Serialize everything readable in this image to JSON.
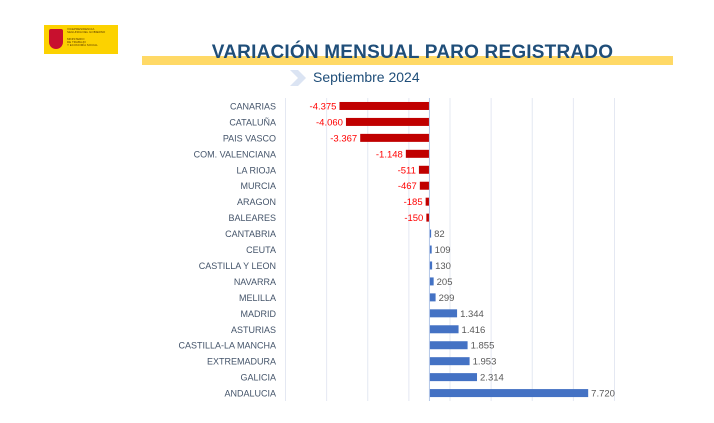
{
  "header": {
    "logo_lines": [
      "VICEPRESIDENCIA",
      "SEGUNDA DEL GOBIERNO",
      "MINISTERIO",
      "DE TRABAJO",
      "Y ECONOMÍA SOCIAL"
    ],
    "colors": {
      "logo_bg": "#fcd200",
      "band": "#ffd966",
      "title": "#1f4e79"
    }
  },
  "chart_data": {
    "type": "bar",
    "orientation": "horizontal",
    "title": "VARIACIÓN MENSUAL PARO REGISTRADO",
    "subtitle": "Septiembre 2024",
    "categories": [
      "CANARIAS",
      "CATALUÑA",
      "PAIS VASCO",
      "COM. VALENCIANA",
      "LA RIOJA",
      "MURCIA",
      "ARAGON",
      "BALEARES",
      "CANTABRIA",
      "CEUTA",
      "CASTILLA Y LEON",
      "NAVARRA",
      "MELILLA",
      "MADRID",
      "ASTURIAS",
      "CASTILLA-LA MANCHA",
      "EXTREMADURA",
      "GALICIA",
      "ANDALUCIA"
    ],
    "values": [
      -4375,
      -4060,
      -3367,
      -1148,
      -511,
      -467,
      -185,
      -150,
      82,
      109,
      130,
      205,
      299,
      1344,
      1416,
      1855,
      1953,
      2314,
      7720
    ],
    "data_labels": [
      "-4.375",
      "-4.060",
      "-3.367",
      "-1.148",
      "-511",
      "-467",
      "-185",
      "-150",
      "82",
      "109",
      "130",
      "205",
      "299",
      "1.344",
      "1.416",
      "1.855",
      "1.953",
      "2.314",
      "7.720"
    ],
    "xlim": [
      -7000,
      9000
    ],
    "gridlines": [
      -7000,
      -5000,
      -3000,
      -1000,
      1000,
      3000,
      5000,
      7000,
      9000
    ],
    "grid": true,
    "colors": {
      "negative": "#c00000",
      "positive": "#4472c4",
      "negative_label": "#ff0000",
      "positive_label": "#595959",
      "category_label": "#44546a"
    }
  }
}
